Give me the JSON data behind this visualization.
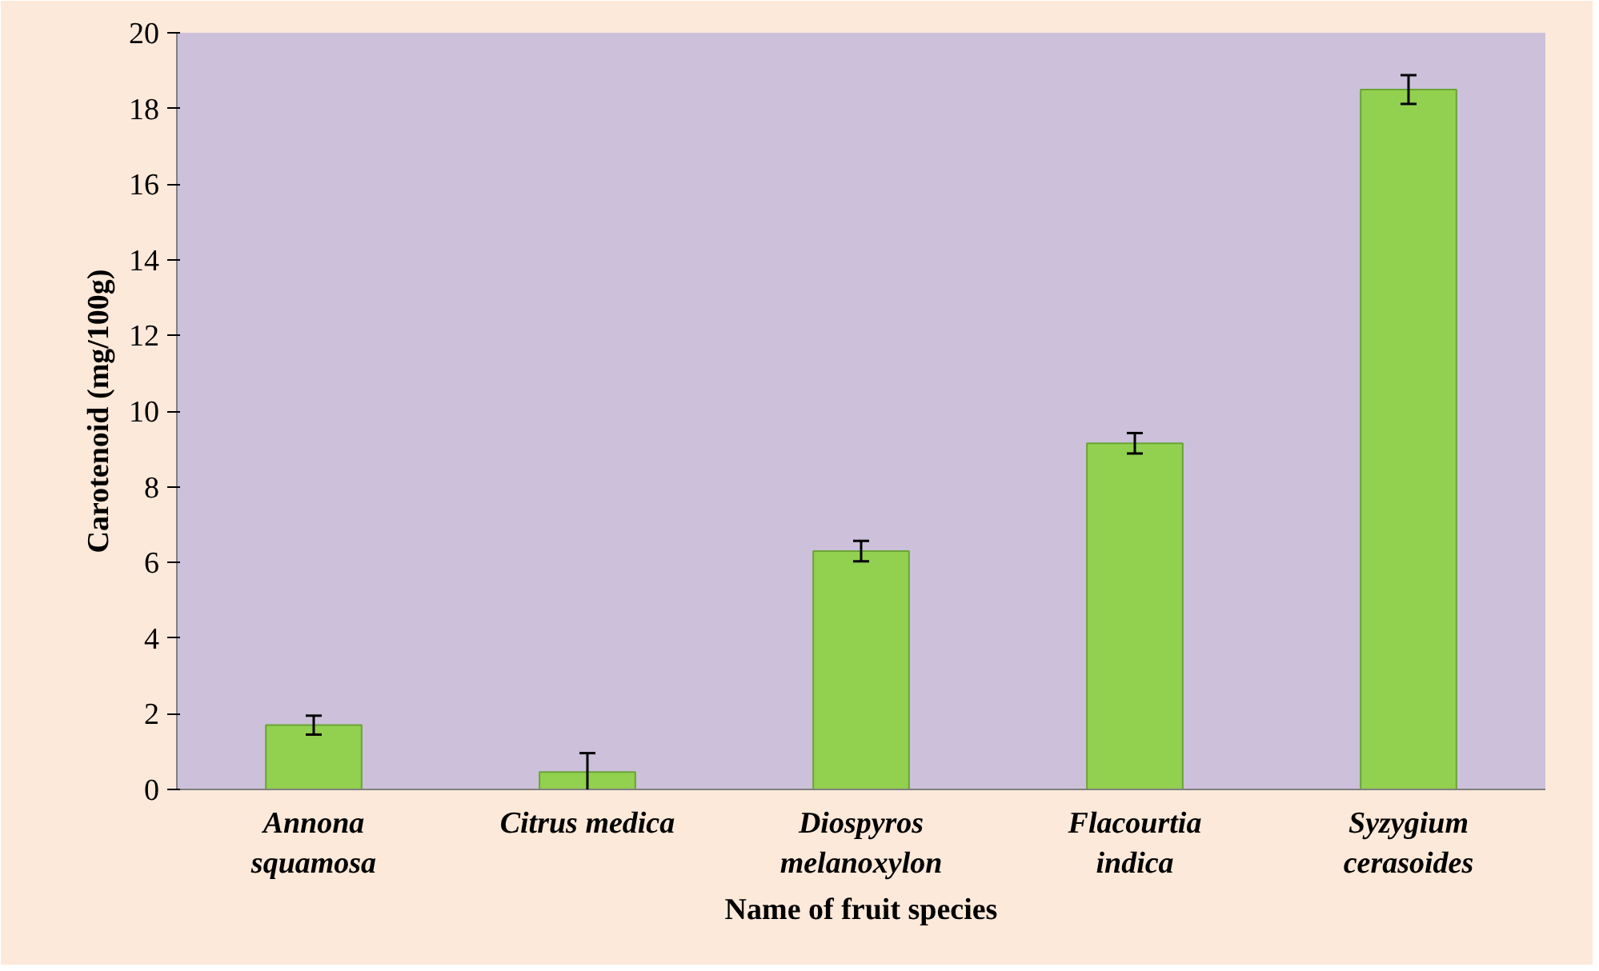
{
  "chart_data": {
    "type": "bar",
    "xlabel": "Name of fruit species",
    "ylabel": "Carotenoid (mg/100g)",
    "categories": [
      "Annona squamosa",
      "Citrus medica",
      "Diospyros melanoxylon",
      "Flacourtia indica",
      "Syzygium cerasoides"
    ],
    "values": [
      1.7,
      0.46,
      6.3,
      9.15,
      18.5
    ],
    "errors": [
      0.25,
      0.5,
      0.27,
      0.27,
      0.38
    ],
    "color": "#92d050",
    "ylim": [
      0,
      20
    ],
    "yticks": [
      0,
      2,
      4,
      6,
      8,
      10,
      12,
      14,
      16,
      18,
      20
    ],
    "grid": false
  }
}
